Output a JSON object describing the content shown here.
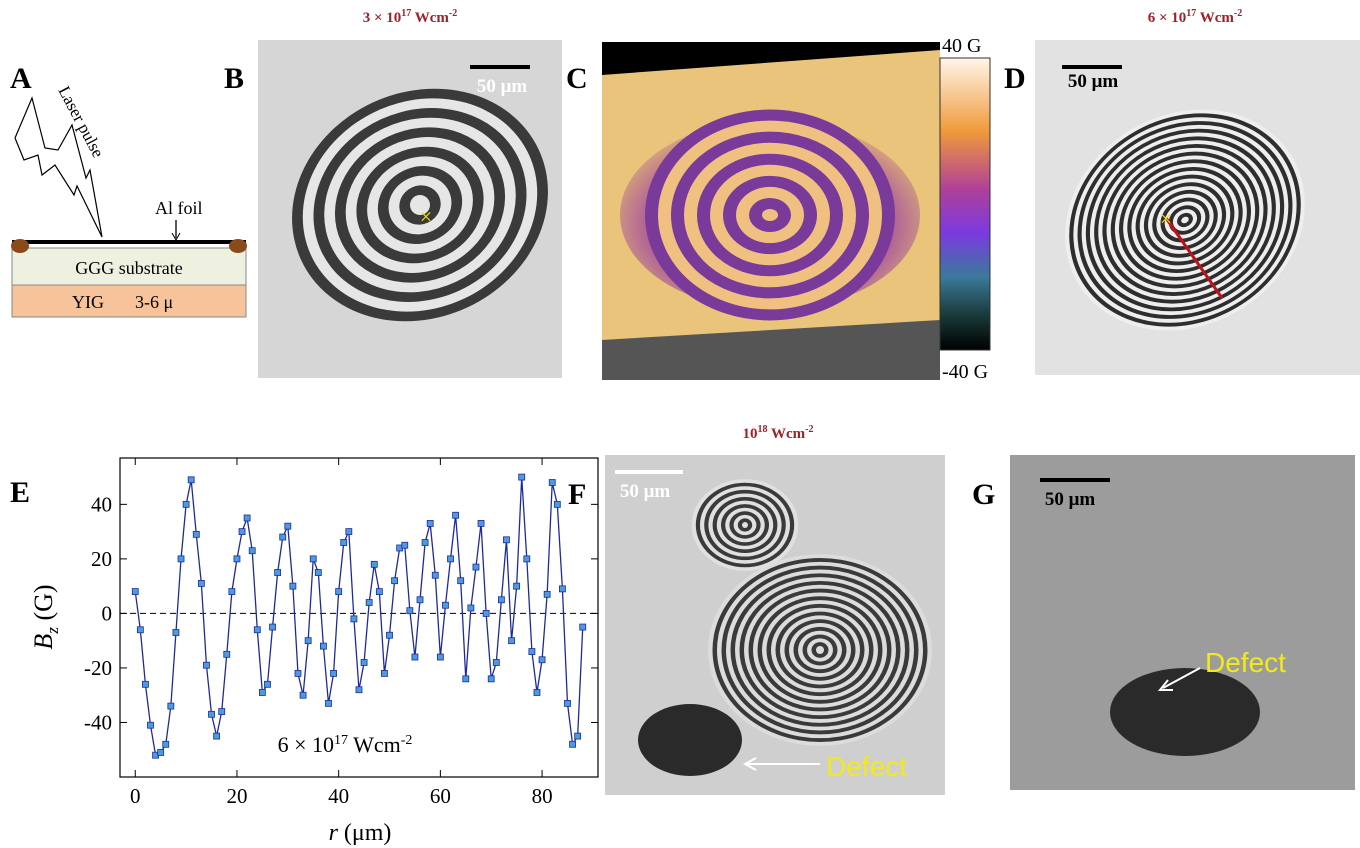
{
  "panels": {
    "A": {
      "label": "A",
      "laser": "Laser pulse",
      "foil": "Al foil",
      "substrate": "GGG substrate",
      "film": "YIG",
      "thickness": "3-6 μ"
    },
    "B": {
      "label": "B",
      "intensity": {
        "base": "3 × 10",
        "exp": "17",
        "unit": " Wcm",
        "unit_exp": "-2"
      },
      "scale_bar": "50 μm"
    },
    "C": {
      "label": "C",
      "colorbar_max": "40 G",
      "colorbar_min": "-40 G"
    },
    "D": {
      "label": "D",
      "intensity": {
        "base": "6 × 10",
        "exp": "17",
        "unit": " Wcm",
        "unit_exp": "-2"
      },
      "scale_bar": "50 μm"
    },
    "F": {
      "label": "F",
      "intensity": {
        "base": "10",
        "exp": "18",
        "unit": " Wcm",
        "unit_exp": "-2"
      },
      "scale_bar": "50 μm",
      "defect": "Defect"
    },
    "G": {
      "label": "G",
      "scale_bar": "50 μm",
      "defect": "Defect"
    }
  },
  "chart_data": {
    "type": "line",
    "label": "E",
    "y_label": {
      "main": "B",
      "sub": "z",
      "unit": " (G)"
    },
    "x_label": {
      "main": "r",
      "unit": " (μm)"
    },
    "annotation": {
      "base": "6 × 10",
      "exp": "17",
      "unit": " Wcm",
      "unit_exp": "-2"
    },
    "color": "#1f2a9a",
    "marker_color": "#4a9be0",
    "reference_line": 0,
    "x": [
      0,
      1,
      2,
      3,
      4,
      5,
      6,
      7,
      8,
      9,
      10,
      11,
      12,
      13,
      14,
      15,
      16,
      17,
      18,
      19,
      20,
      21,
      22,
      23,
      24,
      25,
      26,
      27,
      28,
      29,
      30,
      31,
      32,
      33,
      34,
      35,
      36,
      37,
      38,
      39,
      40,
      41,
      42,
      43,
      44,
      45,
      46,
      47,
      48,
      49,
      50,
      51,
      52,
      53,
      54,
      55,
      56,
      57,
      58,
      59,
      60,
      61,
      62,
      63,
      64,
      65,
      66,
      67,
      68,
      69,
      70,
      71,
      72,
      73,
      74,
      75,
      76,
      77,
      78,
      79,
      80,
      81,
      82,
      83,
      84,
      85,
      86,
      87,
      88
    ],
    "values": [
      8,
      -6,
      -26,
      -41,
      -52,
      -51,
      -48,
      -34,
      -7,
      20,
      40,
      49,
      29,
      11,
      -19,
      -37,
      -45,
      -36,
      -15,
      8,
      20,
      30,
      35,
      23,
      -6,
      -29,
      -26,
      -5,
      15,
      28,
      32,
      10,
      -22,
      -30,
      -10,
      20,
      15,
      -12,
      -33,
      -22,
      8,
      26,
      30,
      -2,
      -28,
      -18,
      4,
      18,
      8,
      -22,
      -8,
      12,
      24,
      25,
      1,
      -16,
      5,
      26,
      33,
      14,
      -16,
      3,
      20,
      36,
      12,
      -24,
      2,
      17,
      33,
      0,
      -24,
      -18,
      5,
      27,
      -10,
      10,
      50,
      20,
      -14,
      -29,
      -17,
      7,
      48,
      40,
      9,
      -33,
      -48,
      -45,
      -5
    ],
    "xlim": [
      -3,
      91
    ],
    "ylim": [
      -60,
      57
    ],
    "xticks": [
      0,
      20,
      40,
      60,
      80
    ],
    "yticks": [
      -40,
      -20,
      0,
      20,
      40
    ]
  }
}
